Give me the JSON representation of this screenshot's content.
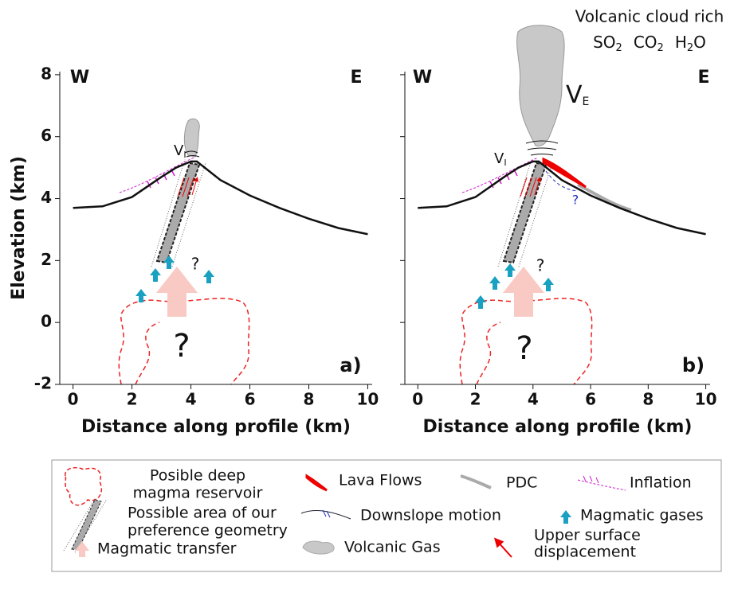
{
  "chart_data": [
    {
      "type": "line",
      "xlabel": "Distance along profile (km)",
      "ylabel": "Elevation (km)",
      "show_ytick_labels": true,
      "x": [
        0,
        1,
        2,
        3,
        3.5,
        4,
        4.2,
        5,
        6,
        7,
        8,
        9,
        10
      ],
      "series": [
        {
          "color": "#111111",
          "values": [
            3.7,
            3.75,
            4.05,
            4.7,
            5.0,
            5.2,
            5.2,
            4.6,
            4.1,
            3.7,
            3.35,
            3.05,
            2.85
          ]
        }
      ],
      "xlim": [
        -0.45,
        10.15
      ],
      "ylim": [
        -2,
        8.1
      ],
      "xticks": [
        0,
        2,
        4,
        6,
        8,
        10
      ],
      "yticks": [
        -2,
        0,
        2,
        4,
        6,
        8
      ],
      "west": "W",
      "east": "E",
      "panel_label": "a)",
      "vent": {
        "text": "V",
        "sub": "I"
      },
      "unknowns": [
        "?",
        "?"
      ]
    },
    {
      "type": "line",
      "xlabel": "Distance along profile (km)",
      "show_ytick_labels": false,
      "x": [
        0,
        1,
        2,
        3,
        3.5,
        4,
        4.2,
        5,
        6,
        7,
        8,
        9,
        10
      ],
      "series": [
        {
          "color": "#111111",
          "values": [
            3.7,
            3.75,
            4.05,
            4.7,
            5.0,
            5.2,
            5.2,
            4.6,
            4.1,
            3.7,
            3.35,
            3.05,
            2.85
          ]
        }
      ],
      "xlim": [
        -0.45,
        10.15
      ],
      "ylim": [
        -2,
        8.1
      ],
      "xticks": [
        0,
        2,
        4,
        6,
        8,
        10
      ],
      "yticks": [
        -2,
        0,
        2,
        4,
        6,
        8
      ],
      "west": "W",
      "east": "E",
      "panel_label": "b)",
      "vent": {
        "text": "V",
        "sub": "I"
      },
      "plume": {
        "text": "V",
        "sub": "E"
      },
      "unknowns": [
        "?",
        "?",
        "?"
      ]
    }
  ],
  "cloud": {
    "title": "Volcanic cloud rich",
    "gases": [
      {
        "text": "SO",
        "sub": "2"
      },
      {
        "text": "CO",
        "sub": "2"
      },
      {
        "text": "H",
        "sub": "2",
        "after": "O"
      }
    ]
  },
  "legend": {
    "items": [
      [
        "Posible deep",
        "magma reservoir"
      ],
      [
        "Lava Flows"
      ],
      [
        "PDC"
      ],
      [
        "Inflation"
      ],
      [
        "Possible area of our",
        "preference geometry"
      ],
      [
        "Downslope motion"
      ],
      [
        "Magmatic gases"
      ],
      [
        "Magmatic transfer"
      ],
      [
        "Volcanic Gas"
      ],
      [
        "Upper surface",
        "displacement"
      ]
    ]
  }
}
